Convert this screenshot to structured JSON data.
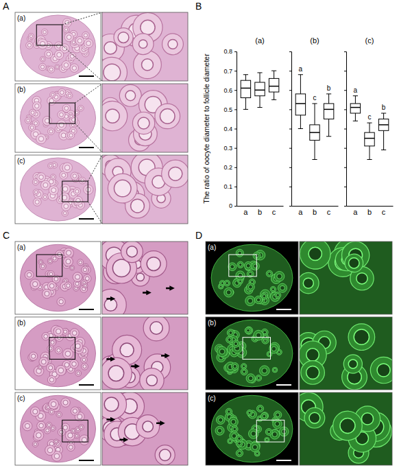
{
  "figure": {
    "panel_labels": [
      "A",
      "B",
      "C",
      "D"
    ],
    "image_rows": {
      "A": [
        "(a)",
        "(b)",
        "(c)"
      ],
      "C": [
        "(a)",
        "(b)",
        "(c)"
      ],
      "D": [
        "(a)",
        "(b)",
        "(c)"
      ]
    }
  },
  "chart_data": [
    {
      "type": "box",
      "title": "(a)",
      "ylabel": "The ratio of oocyte diameter to follicle diameter",
      "categories": [
        "a",
        "b",
        "c"
      ],
      "ylim": [
        0,
        0.8
      ],
      "yticks": [
        0,
        0.1,
        0.2,
        0.3,
        0.4,
        0.5,
        0.6,
        0.7,
        0.8
      ],
      "min": [
        0.5,
        0.51,
        0.55
      ],
      "q1": [
        0.56,
        0.57,
        0.59
      ],
      "median": [
        0.61,
        0.6,
        0.62
      ],
      "q3": [
        0.65,
        0.64,
        0.66
      ],
      "max": [
        0.68,
        0.69,
        0.7
      ],
      "tick_labels": true
    },
    {
      "type": "box",
      "title": "(b)",
      "categories": [
        "a",
        "b",
        "c"
      ],
      "ylim": [
        0,
        0.8
      ],
      "yticks": [
        0,
        0.1,
        0.2,
        0.3,
        0.4,
        0.5,
        0.6,
        0.7,
        0.8
      ],
      "min": [
        0.4,
        0.24,
        0.36
      ],
      "q1": [
        0.47,
        0.34,
        0.45
      ],
      "median": [
        0.53,
        0.38,
        0.5
      ],
      "q3": [
        0.58,
        0.42,
        0.53
      ],
      "max": [
        0.68,
        0.53,
        0.58
      ],
      "annotations": [
        "a",
        "c",
        "b"
      ],
      "tick_labels": "x"
    },
    {
      "type": "box",
      "title": "(c)",
      "categories": [
        "a",
        "b",
        "c"
      ],
      "ylim": [
        0,
        0.8
      ],
      "yticks": [
        0,
        0.1,
        0.2,
        0.3,
        0.4,
        0.5,
        0.6,
        0.7,
        0.8
      ],
      "min": [
        0.44,
        0.24,
        0.29
      ],
      "q1": [
        0.48,
        0.31,
        0.39
      ],
      "median": [
        0.51,
        0.35,
        0.42
      ],
      "q3": [
        0.53,
        0.38,
        0.45
      ],
      "max": [
        0.57,
        0.43,
        0.48
      ],
      "annotations": [
        "a",
        "c",
        "b"
      ],
      "tick_labels": "x"
    }
  ]
}
